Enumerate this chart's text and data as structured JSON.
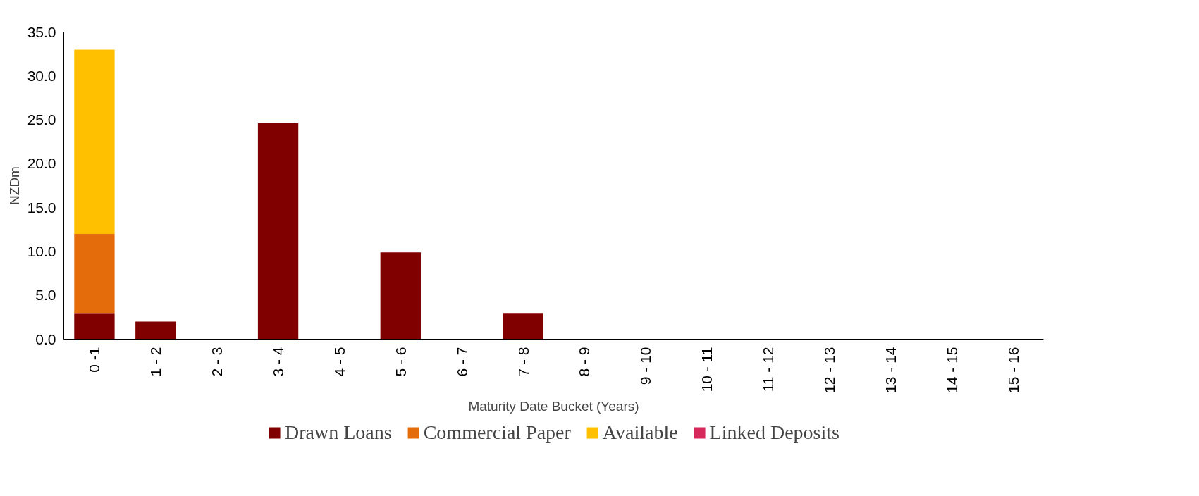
{
  "chart_data": {
    "type": "bar",
    "stacked": true,
    "ylabel": "NZDm",
    "xlabel": "Maturity Date Bucket (Years)",
    "categories": [
      "0 -1",
      "1 - 2",
      "2 - 3",
      "3 - 4",
      "4 - 5",
      "5 - 6",
      "6 - 7",
      "7 - 8",
      "8 - 9",
      "9 - 10",
      "10 - 11",
      "11 - 12",
      "12 - 13",
      "13 - 14",
      "14 - 15",
      "15 - 16"
    ],
    "series": [
      {
        "name": "Drawn Loans",
        "color": "#800000",
        "values": [
          3,
          2,
          0,
          24.6,
          0,
          9.9,
          0,
          3,
          0,
          0,
          0,
          0,
          0,
          0,
          0,
          0
        ]
      },
      {
        "name": "Commercial Paper",
        "color": "#e46c0a",
        "values": [
          9,
          0,
          0,
          0,
          0,
          0,
          0,
          0,
          0,
          0,
          0,
          0,
          0,
          0,
          0,
          0
        ]
      },
      {
        "name": "Available",
        "color": "#ffc000",
        "values": [
          21,
          0,
          0,
          0,
          0,
          0,
          0,
          0,
          0,
          0,
          0,
          0,
          0,
          0,
          0,
          0
        ]
      },
      {
        "name": "Linked Deposits",
        "color": "#d6285a",
        "values": [
          0,
          0,
          0,
          0,
          0,
          0,
          0,
          0,
          0,
          0,
          0,
          0,
          0,
          0,
          0,
          0
        ]
      }
    ],
    "ylim": [
      0,
      35
    ],
    "yticks": [
      {
        "value": 0,
        "label": "0.0"
      },
      {
        "value": 5,
        "label": "5.0"
      },
      {
        "value": 10,
        "label": "10.0"
      },
      {
        "value": 15,
        "label": "15.0"
      },
      {
        "value": 20,
        "label": "20.0"
      },
      {
        "value": 25,
        "label": "25.0"
      },
      {
        "value": 30,
        "label": "30.0"
      },
      {
        "value": 35,
        "label": "35.0"
      }
    ],
    "grid": false,
    "legend": "bottom"
  }
}
